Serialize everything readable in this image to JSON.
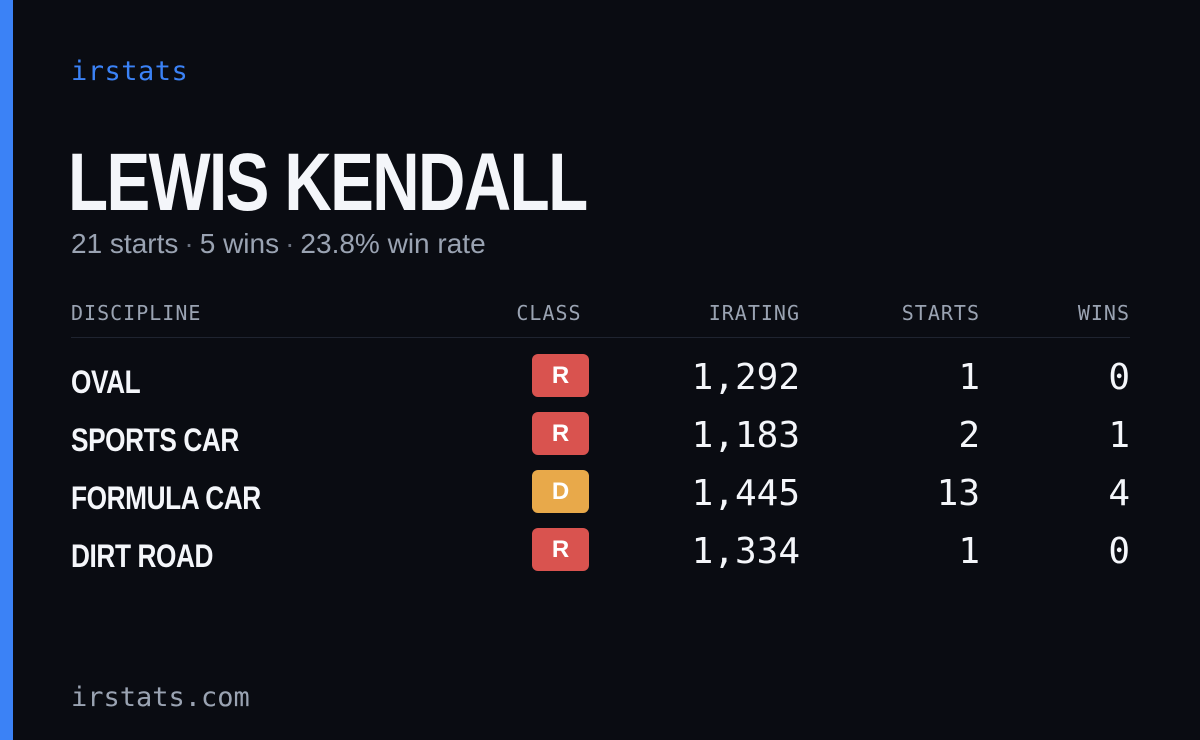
{
  "brand": "irstats",
  "driver": {
    "name": "LEWIS KENDALL"
  },
  "summary": {
    "starts": "21 starts",
    "wins": "5 wins",
    "win_rate": "23.8% win rate",
    "separator": "·"
  },
  "table": {
    "headers": {
      "discipline": "DISCIPLINE",
      "class": "CLASS",
      "irating": "IRATING",
      "starts": "STARTS",
      "wins": "WINS"
    },
    "rows": [
      {
        "discipline": "OVAL",
        "class": "R",
        "class_color": "#d9534f",
        "irating": "1,292",
        "starts": "1",
        "wins": "0"
      },
      {
        "discipline": "SPORTS CAR",
        "class": "R",
        "class_color": "#d9534f",
        "irating": "1,183",
        "starts": "2",
        "wins": "1"
      },
      {
        "discipline": "FORMULA CAR",
        "class": "D",
        "class_color": "#e8a94a",
        "irating": "1,445",
        "starts": "13",
        "wins": "4"
      },
      {
        "discipline": "DIRT ROAD",
        "class": "R",
        "class_color": "#d9534f",
        "irating": "1,334",
        "starts": "1",
        "wins": "0"
      }
    ]
  },
  "footer": {
    "url": "irstats.com"
  },
  "colors": {
    "accent": "#3b82f6",
    "background": "#0a0c12"
  }
}
